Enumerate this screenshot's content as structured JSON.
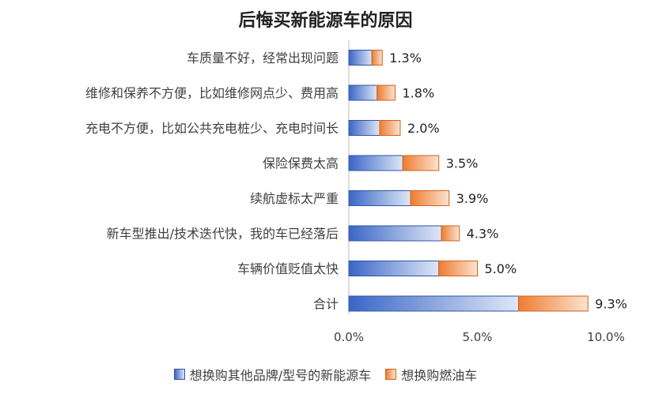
{
  "chart_data": {
    "type": "bar",
    "orientation": "horizontal",
    "stacked": true,
    "title": "后悔买新能源车的原因",
    "categories": [
      "车质量不好，经常出现问题",
      "维修和保养不方便，比如维修网点少、费用高",
      "充电不方便，比如公共充电桩少、充电时间长",
      "保险保费太高",
      "续航虚标太严重",
      "新车型推出/技术迭代快，我的车已经落后",
      "车辆价值贬值太快",
      "合计"
    ],
    "series": [
      {
        "name": "想换购其他品牌/型号的新能源车",
        "values": [
          0.9,
          1.1,
          1.2,
          2.1,
          2.4,
          3.6,
          3.5,
          6.6
        ],
        "color": "#3a66c7"
      },
      {
        "name": "想换购燃油车",
        "values": [
          0.4,
          0.7,
          0.8,
          1.4,
          1.5,
          0.7,
          1.5,
          2.7
        ],
        "color": "#ed7d31"
      }
    ],
    "totals": [
      "1.3%",
      "1.8%",
      "2.0%",
      "3.5%",
      "3.9%",
      "4.3%",
      "5.0%",
      "9.3%"
    ],
    "x_ticks": [
      "0.0%",
      "5.0%",
      "10.0%"
    ],
    "x_tick_values": [
      0,
      5,
      10
    ],
    "xlim": [
      0,
      10
    ],
    "xlabel": "",
    "ylabel": "",
    "grid": false,
    "legend_position": "bottom"
  }
}
